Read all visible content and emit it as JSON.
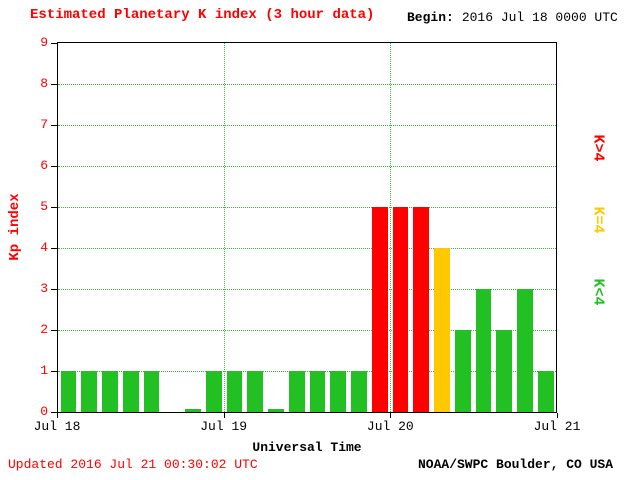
{
  "colors": {
    "background": "#ffffff",
    "text_red": "#ff0000",
    "text_black": "#000000",
    "bar_red": "#ff0000",
    "bar_yellow": "#ffc800",
    "bar_green": "#22c022",
    "grid_green": "#3cb83c",
    "axis_black": "#000000"
  },
  "header": {
    "title": "Estimated Planetary K index (3 hour data)",
    "begin_label": "Begin:",
    "begin_value": "2016 Jul 18 0000 UTC"
  },
  "footer": {
    "updated": "Updated 2016 Jul 21 00:30:02 UTC",
    "source": "NOAA/SWPC Boulder, CO USA"
  },
  "chart_data": {
    "type": "bar",
    "title": "Estimated Planetary K index (3 hour data)",
    "xlabel": "Universal Time",
    "ylabel": "Kp index",
    "ylim": [
      0,
      9
    ],
    "yticks": [
      0,
      1,
      2,
      3,
      4,
      5,
      6,
      7,
      8,
      9
    ],
    "x_tick_labels": [
      "Jul 18",
      "Jul 19",
      "Jul 20",
      "Jul 21"
    ],
    "bar_interval_hours": 3,
    "begin": "2016 Jul 18 0000 UTC",
    "values": [
      1,
      1,
      1,
      1,
      1,
      null,
      0,
      1,
      1,
      1,
      0,
      1,
      1,
      1,
      1,
      5,
      5,
      5,
      4,
      2,
      3,
      2,
      3,
      1
    ],
    "values_by_day": [
      {
        "day": "Jul 18",
        "kp": [
          1,
          1,
          1,
          1,
          1,
          null,
          0,
          1
        ]
      },
      {
        "day": "Jul 19",
        "kp": [
          1,
          1,
          0,
          1,
          1,
          1,
          1,
          5
        ]
      },
      {
        "day": "Jul 20",
        "kp": [
          5,
          5,
          4,
          2,
          3,
          2,
          3,
          1
        ]
      }
    ],
    "color_rules": [
      {
        "condition": "K>4",
        "color": "#ff0000"
      },
      {
        "condition": "K=4",
        "color": "#ffc800"
      },
      {
        "condition": "K<4",
        "color": "#22c022"
      }
    ],
    "legend": [
      {
        "label": "K>4",
        "color": "#ff0000"
      },
      {
        "label": "K=4",
        "color": "#ffc800"
      },
      {
        "label": "K<4",
        "color": "#22c022"
      }
    ],
    "legend_position": "right",
    "grid": {
      "color": "#3cb83c",
      "horizontal": "dotted line at each Kp integer 1-8",
      "vertical": "dotted line at each day boundary"
    }
  }
}
